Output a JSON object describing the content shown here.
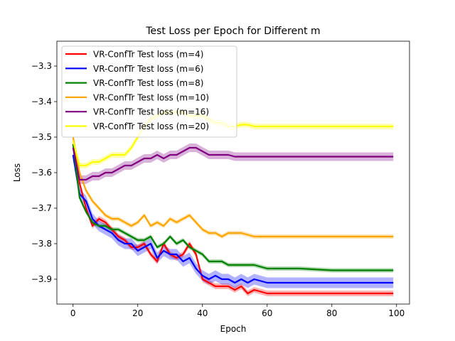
{
  "chart_data": {
    "type": "line",
    "title": "Test Loss per Epoch for Different m",
    "xlabel": "Epoch",
    "ylabel": "Loss",
    "xlim": [
      -5,
      104
    ],
    "ylim": [
      -3.97,
      -3.23
    ],
    "xticks": [
      0,
      20,
      40,
      60,
      80,
      100
    ],
    "xtick_labels": [
      "0",
      "20",
      "40",
      "60",
      "80",
      "100"
    ],
    "yticks": [
      -3.9,
      -3.8,
      -3.7,
      -3.6,
      -3.5,
      -3.4,
      -3.3
    ],
    "ytick_labels": [
      "−3.9",
      "−3.8",
      "−3.7",
      "−3.6",
      "−3.5",
      "−3.4",
      "−3.3"
    ],
    "grid": false,
    "legend_position": "top-left",
    "series": [
      {
        "name": "VR-ConfTr Test loss (m=4)",
        "color": "#ff0000",
        "band": 0.008,
        "points": [
          [
            0,
            -3.52
          ],
          [
            2,
            -3.63
          ],
          [
            4,
            -3.7
          ],
          [
            6,
            -3.75
          ],
          [
            8,
            -3.73
          ],
          [
            10,
            -3.74
          ],
          [
            12,
            -3.76
          ],
          [
            14,
            -3.78
          ],
          [
            16,
            -3.79
          ],
          [
            18,
            -3.81
          ],
          [
            20,
            -3.81
          ],
          [
            22,
            -3.8
          ],
          [
            24,
            -3.83
          ],
          [
            26,
            -3.85
          ],
          [
            28,
            -3.8
          ],
          [
            30,
            -3.83
          ],
          [
            32,
            -3.84
          ],
          [
            34,
            -3.83
          ],
          [
            36,
            -3.8
          ],
          [
            38,
            -3.83
          ],
          [
            40,
            -3.9
          ],
          [
            42,
            -3.91
          ],
          [
            44,
            -3.92
          ],
          [
            46,
            -3.92
          ],
          [
            48,
            -3.92
          ],
          [
            50,
            -3.93
          ],
          [
            52,
            -3.92
          ],
          [
            54,
            -3.94
          ],
          [
            56,
            -3.93
          ],
          [
            60,
            -3.94
          ],
          [
            70,
            -3.94
          ],
          [
            80,
            -3.94
          ],
          [
            90,
            -3.94
          ],
          [
            99,
            -3.94
          ]
        ]
      },
      {
        "name": "VR-ConfTr Test loss (m=6)",
        "color": "#0000ff",
        "band": 0.015,
        "points": [
          [
            0,
            -3.55
          ],
          [
            2,
            -3.66
          ],
          [
            4,
            -3.68
          ],
          [
            6,
            -3.73
          ],
          [
            8,
            -3.75
          ],
          [
            10,
            -3.76
          ],
          [
            12,
            -3.77
          ],
          [
            14,
            -3.79
          ],
          [
            16,
            -3.8
          ],
          [
            18,
            -3.8
          ],
          [
            20,
            -3.82
          ],
          [
            22,
            -3.81
          ],
          [
            24,
            -3.8
          ],
          [
            26,
            -3.84
          ],
          [
            28,
            -3.82
          ],
          [
            30,
            -3.83
          ],
          [
            32,
            -3.83
          ],
          [
            34,
            -3.85
          ],
          [
            36,
            -3.84
          ],
          [
            38,
            -3.87
          ],
          [
            40,
            -3.89
          ],
          [
            42,
            -3.9
          ],
          [
            44,
            -3.89
          ],
          [
            46,
            -3.9
          ],
          [
            48,
            -3.9
          ],
          [
            50,
            -3.91
          ],
          [
            52,
            -3.9
          ],
          [
            54,
            -3.91
          ],
          [
            56,
            -3.9
          ],
          [
            60,
            -3.91
          ],
          [
            70,
            -3.91
          ],
          [
            80,
            -3.91
          ],
          [
            90,
            -3.91
          ],
          [
            99,
            -3.91
          ]
        ]
      },
      {
        "name": "VR-ConfTr Test loss (m=8)",
        "color": "#008000",
        "band": 0.006,
        "points": [
          [
            0,
            -3.52
          ],
          [
            2,
            -3.67
          ],
          [
            4,
            -3.71
          ],
          [
            6,
            -3.74
          ],
          [
            8,
            -3.75
          ],
          [
            10,
            -3.75
          ],
          [
            12,
            -3.76
          ],
          [
            14,
            -3.76
          ],
          [
            16,
            -3.77
          ],
          [
            18,
            -3.78
          ],
          [
            20,
            -3.79
          ],
          [
            22,
            -3.79
          ],
          [
            24,
            -3.78
          ],
          [
            26,
            -3.81
          ],
          [
            28,
            -3.8
          ],
          [
            30,
            -3.78
          ],
          [
            32,
            -3.8
          ],
          [
            34,
            -3.79
          ],
          [
            36,
            -3.81
          ],
          [
            38,
            -3.82
          ],
          [
            40,
            -3.83
          ],
          [
            42,
            -3.85
          ],
          [
            44,
            -3.85
          ],
          [
            46,
            -3.85
          ],
          [
            48,
            -3.86
          ],
          [
            50,
            -3.86
          ],
          [
            52,
            -3.86
          ],
          [
            54,
            -3.86
          ],
          [
            56,
            -3.86
          ],
          [
            60,
            -3.87
          ],
          [
            70,
            -3.87
          ],
          [
            80,
            -3.875
          ],
          [
            90,
            -3.875
          ],
          [
            99,
            -3.875
          ]
        ]
      },
      {
        "name": "VR-ConfTr Test loss (m=10)",
        "color": "#ffa500",
        "band": 0.006,
        "points": [
          [
            0,
            -3.5
          ],
          [
            2,
            -3.6
          ],
          [
            4,
            -3.65
          ],
          [
            6,
            -3.68
          ],
          [
            8,
            -3.7
          ],
          [
            10,
            -3.72
          ],
          [
            12,
            -3.73
          ],
          [
            14,
            -3.73
          ],
          [
            16,
            -3.74
          ],
          [
            18,
            -3.75
          ],
          [
            20,
            -3.74
          ],
          [
            22,
            -3.72
          ],
          [
            24,
            -3.75
          ],
          [
            26,
            -3.74
          ],
          [
            28,
            -3.75
          ],
          [
            30,
            -3.73
          ],
          [
            32,
            -3.74
          ],
          [
            34,
            -3.73
          ],
          [
            36,
            -3.72
          ],
          [
            38,
            -3.74
          ],
          [
            40,
            -3.76
          ],
          [
            42,
            -3.77
          ],
          [
            44,
            -3.77
          ],
          [
            46,
            -3.78
          ],
          [
            48,
            -3.77
          ],
          [
            50,
            -3.77
          ],
          [
            52,
            -3.77
          ],
          [
            54,
            -3.775
          ],
          [
            56,
            -3.78
          ],
          [
            60,
            -3.78
          ],
          [
            70,
            -3.78
          ],
          [
            80,
            -3.78
          ],
          [
            90,
            -3.78
          ],
          [
            99,
            -3.78
          ]
        ]
      },
      {
        "name": "VR-ConfTr Test loss (m=16)",
        "color": "#800080",
        "band": 0.012,
        "points": [
          [
            0,
            -3.53
          ],
          [
            2,
            -3.62
          ],
          [
            4,
            -3.62
          ],
          [
            6,
            -3.61
          ],
          [
            8,
            -3.61
          ],
          [
            10,
            -3.6
          ],
          [
            12,
            -3.6
          ],
          [
            14,
            -3.59
          ],
          [
            16,
            -3.58
          ],
          [
            18,
            -3.58
          ],
          [
            20,
            -3.57
          ],
          [
            22,
            -3.56
          ],
          [
            24,
            -3.56
          ],
          [
            26,
            -3.55
          ],
          [
            28,
            -3.56
          ],
          [
            30,
            -3.55
          ],
          [
            32,
            -3.55
          ],
          [
            34,
            -3.54
          ],
          [
            36,
            -3.53
          ],
          [
            38,
            -3.53
          ],
          [
            40,
            -3.54
          ],
          [
            42,
            -3.55
          ],
          [
            44,
            -3.55
          ],
          [
            46,
            -3.55
          ],
          [
            48,
            -3.55
          ],
          [
            50,
            -3.555
          ],
          [
            52,
            -3.555
          ],
          [
            54,
            -3.555
          ],
          [
            56,
            -3.555
          ],
          [
            60,
            -3.555
          ],
          [
            70,
            -3.555
          ],
          [
            80,
            -3.555
          ],
          [
            90,
            -3.555
          ],
          [
            99,
            -3.555
          ]
        ]
      },
      {
        "name": "VR-ConfTr Test loss (m=20)",
        "color": "#ffff00",
        "band": 0.008,
        "points": [
          [
            0,
            -3.51
          ],
          [
            2,
            -3.58
          ],
          [
            4,
            -3.58
          ],
          [
            6,
            -3.57
          ],
          [
            8,
            -3.57
          ],
          [
            10,
            -3.56
          ],
          [
            12,
            -3.55
          ],
          [
            14,
            -3.55
          ],
          [
            16,
            -3.55
          ],
          [
            18,
            -3.53
          ],
          [
            20,
            -3.5
          ],
          [
            22,
            -3.47
          ],
          [
            24,
            -3.45
          ],
          [
            26,
            -3.44
          ],
          [
            28,
            -3.43
          ],
          [
            30,
            -3.43
          ],
          [
            32,
            -3.43
          ],
          [
            34,
            -3.43
          ],
          [
            36,
            -3.44
          ],
          [
            38,
            -3.44
          ],
          [
            40,
            -3.44
          ],
          [
            42,
            -3.45
          ],
          [
            44,
            -3.46
          ],
          [
            46,
            -3.46
          ],
          [
            48,
            -3.47
          ],
          [
            50,
            -3.47
          ],
          [
            52,
            -3.465
          ],
          [
            54,
            -3.465
          ],
          [
            56,
            -3.47
          ],
          [
            60,
            -3.47
          ],
          [
            70,
            -3.47
          ],
          [
            80,
            -3.47
          ],
          [
            90,
            -3.47
          ],
          [
            99,
            -3.47
          ]
        ]
      }
    ]
  }
}
